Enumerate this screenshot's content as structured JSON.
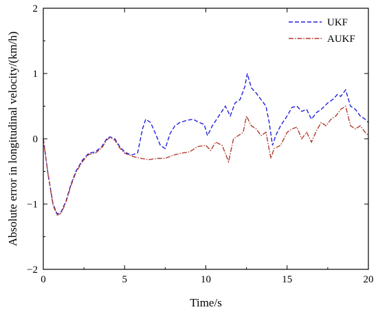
{
  "chart_data": {
    "type": "line",
    "title": "",
    "xlabel": "Time/s",
    "ylabel": "Absolute error in longitudinal velocity/(km/h)",
    "xlim": [
      0,
      20
    ],
    "ylim": [
      -2,
      2
    ],
    "xticks": [
      0,
      5,
      10,
      15,
      20
    ],
    "yticks": [
      -2,
      -1,
      0,
      1,
      2
    ],
    "xtick_labels": [
      "0",
      "5",
      "10",
      "15",
      "20"
    ],
    "ytick_labels": [
      "−2",
      "−1",
      "0",
      "1",
      "2"
    ],
    "grid": false,
    "legend_position": "top-right",
    "series": [
      {
        "name": "UKF",
        "color": "#1f1fdd",
        "style": "dashed",
        "points": [
          [
            0,
            0.0
          ],
          [
            0.3,
            -0.55
          ],
          [
            0.6,
            -1.0
          ],
          [
            0.85,
            -1.15
          ],
          [
            1.1,
            -1.12
          ],
          [
            1.4,
            -0.95
          ],
          [
            1.7,
            -0.7
          ],
          [
            2.0,
            -0.5
          ],
          [
            2.4,
            -0.33
          ],
          [
            2.8,
            -0.22
          ],
          [
            3.2,
            -0.2
          ],
          [
            3.6,
            -0.12
          ],
          [
            3.9,
            0.0
          ],
          [
            4.1,
            0.03
          ],
          [
            4.4,
            0.0
          ],
          [
            4.7,
            -0.12
          ],
          [
            5.0,
            -0.2
          ],
          [
            5.4,
            -0.25
          ],
          [
            5.8,
            -0.22
          ],
          [
            6.1,
            0.15
          ],
          [
            6.3,
            0.3
          ],
          [
            6.6,
            0.25
          ],
          [
            6.9,
            0.08
          ],
          [
            7.2,
            -0.1
          ],
          [
            7.5,
            -0.15
          ],
          [
            7.8,
            0.08
          ],
          [
            8.1,
            0.2
          ],
          [
            8.4,
            0.25
          ],
          [
            8.8,
            0.28
          ],
          [
            9.2,
            0.3
          ],
          [
            9.6,
            0.25
          ],
          [
            9.9,
            0.22
          ],
          [
            10.1,
            0.05
          ],
          [
            10.4,
            0.2
          ],
          [
            10.8,
            0.35
          ],
          [
            11.2,
            0.5
          ],
          [
            11.5,
            0.35
          ],
          [
            11.8,
            0.55
          ],
          [
            12.1,
            0.6
          ],
          [
            12.4,
            0.8
          ],
          [
            12.55,
            1.0
          ],
          [
            12.8,
            0.78
          ],
          [
            13.1,
            0.7
          ],
          [
            13.4,
            0.6
          ],
          [
            13.7,
            0.5
          ],
          [
            13.9,
            0.25
          ],
          [
            14.1,
            -0.1
          ],
          [
            14.3,
            0.05
          ],
          [
            14.6,
            0.2
          ],
          [
            15.0,
            0.35
          ],
          [
            15.3,
            0.48
          ],
          [
            15.6,
            0.5
          ],
          [
            15.9,
            0.42
          ],
          [
            16.2,
            0.45
          ],
          [
            16.5,
            0.3
          ],
          [
            16.8,
            0.4
          ],
          [
            17.1,
            0.45
          ],
          [
            17.5,
            0.55
          ],
          [
            17.8,
            0.6
          ],
          [
            18.1,
            0.68
          ],
          [
            18.3,
            0.65
          ],
          [
            18.6,
            0.75
          ],
          [
            18.9,
            0.5
          ],
          [
            19.2,
            0.45
          ],
          [
            19.5,
            0.35
          ],
          [
            19.8,
            0.3
          ],
          [
            20.0,
            0.25
          ]
        ]
      },
      {
        "name": "AUKF",
        "color": "#b03a2e",
        "style": "dashdot",
        "points": [
          [
            0,
            0.0
          ],
          [
            0.3,
            -0.56
          ],
          [
            0.6,
            -1.02
          ],
          [
            0.85,
            -1.17
          ],
          [
            1.1,
            -1.14
          ],
          [
            1.4,
            -0.97
          ],
          [
            1.7,
            -0.72
          ],
          [
            2.0,
            -0.52
          ],
          [
            2.4,
            -0.35
          ],
          [
            2.8,
            -0.24
          ],
          [
            3.2,
            -0.22
          ],
          [
            3.6,
            -0.14
          ],
          [
            3.9,
            -0.02
          ],
          [
            4.1,
            0.02
          ],
          [
            4.4,
            -0.02
          ],
          [
            4.7,
            -0.14
          ],
          [
            5.0,
            -0.22
          ],
          [
            5.5,
            -0.27
          ],
          [
            6.0,
            -0.3
          ],
          [
            6.5,
            -0.32
          ],
          [
            7.0,
            -0.3
          ],
          [
            7.5,
            -0.3
          ],
          [
            8.0,
            -0.25
          ],
          [
            8.5,
            -0.22
          ],
          [
            9.0,
            -0.2
          ],
          [
            9.5,
            -0.12
          ],
          [
            10.0,
            -0.1
          ],
          [
            10.3,
            -0.18
          ],
          [
            10.6,
            -0.05
          ],
          [
            11.0,
            -0.1
          ],
          [
            11.4,
            -0.35
          ],
          [
            11.7,
            0.0
          ],
          [
            12.0,
            0.05
          ],
          [
            12.3,
            0.1
          ],
          [
            12.5,
            0.35
          ],
          [
            12.8,
            0.2
          ],
          [
            13.1,
            0.15
          ],
          [
            13.4,
            0.05
          ],
          [
            13.7,
            0.1
          ],
          [
            14.0,
            -0.3
          ],
          [
            14.2,
            -0.15
          ],
          [
            14.6,
            -0.1
          ],
          [
            15.0,
            0.1
          ],
          [
            15.3,
            0.15
          ],
          [
            15.6,
            0.18
          ],
          [
            15.9,
            0.0
          ],
          [
            16.2,
            0.1
          ],
          [
            16.5,
            -0.05
          ],
          [
            16.8,
            0.12
          ],
          [
            17.1,
            0.25
          ],
          [
            17.4,
            0.2
          ],
          [
            17.7,
            0.3
          ],
          [
            18.0,
            0.35
          ],
          [
            18.3,
            0.45
          ],
          [
            18.6,
            0.5
          ],
          [
            18.9,
            0.2
          ],
          [
            19.2,
            0.15
          ],
          [
            19.5,
            0.2
          ],
          [
            19.8,
            0.1
          ],
          [
            20.0,
            0.05
          ]
        ]
      }
    ]
  }
}
